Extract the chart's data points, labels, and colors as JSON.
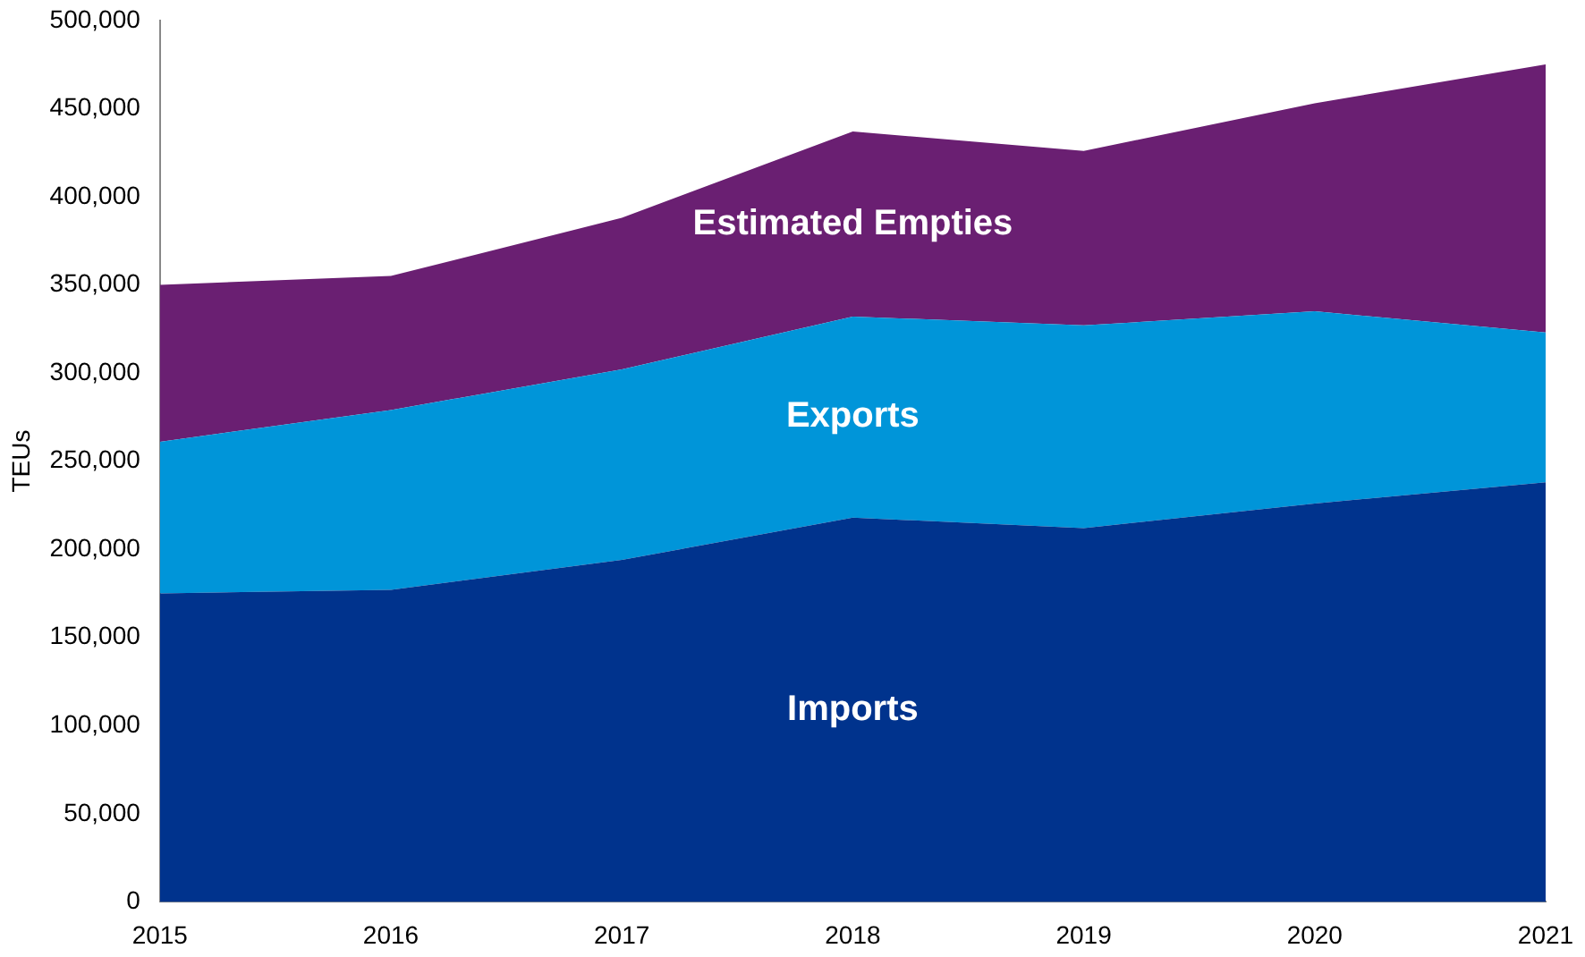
{
  "chart_data": {
    "type": "area",
    "stacked": true,
    "ylabel": "TEUs",
    "x": [
      2015,
      2016,
      2017,
      2018,
      2019,
      2020,
      2021
    ],
    "xlim": [
      2015,
      2021
    ],
    "xticks": [
      2015,
      2016,
      2017,
      2018,
      2019,
      2020,
      2021
    ],
    "ylim": [
      0,
      500000
    ],
    "yticks": [
      0,
      {
        "value": 50000,
        "label": "50,000"
      },
      {
        "value": 100000,
        "label": "100,000"
      },
      {
        "value": 150000,
        "label": "150,000"
      },
      {
        "value": 200000,
        "label": "200,000"
      },
      {
        "value": 250000,
        "label": "250,000"
      },
      {
        "value": 300000,
        "label": "300,000"
      },
      {
        "value": 350000,
        "label": "350,000"
      },
      {
        "value": 400000,
        "label": "400,000"
      },
      {
        "value": 450000,
        "label": "450,000"
      },
      {
        "value": 500000,
        "label": "500,000"
      }
    ],
    "grid": false,
    "legend": false,
    "series": [
      {
        "name": "Imports",
        "color": "#00338d",
        "values": [
          175000,
          177000,
          194000,
          218000,
          212000,
          226000,
          238000
        ]
      },
      {
        "name": "Exports",
        "color": "#0095d9",
        "values": [
          86000,
          102000,
          108000,
          114000,
          115000,
          109000,
          85000
        ]
      },
      {
        "name": "Estimated Empties",
        "color": "#6a1f72",
        "values": [
          89000,
          76000,
          86000,
          105000,
          99000,
          118000,
          152000
        ]
      }
    ]
  }
}
